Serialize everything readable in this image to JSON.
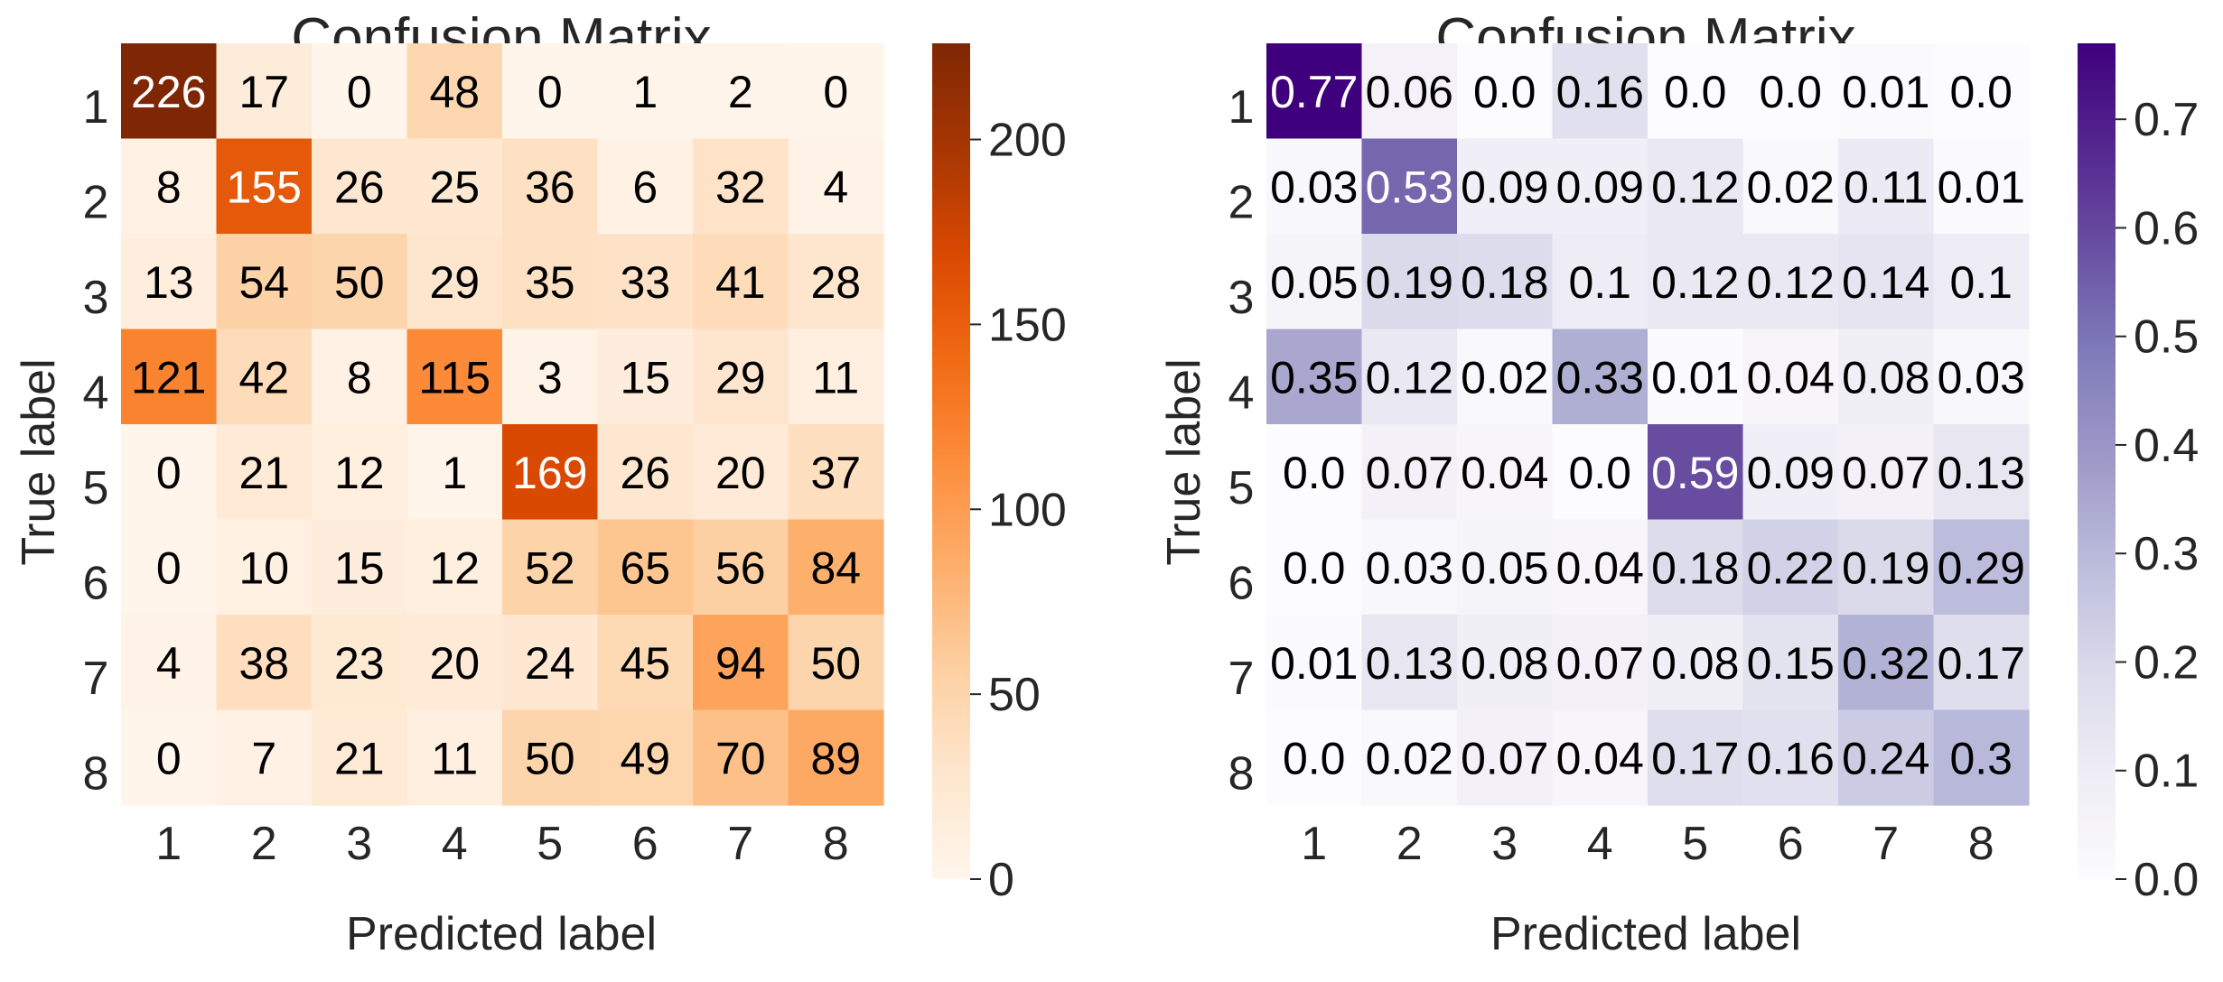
{
  "chart_data": [
    {
      "type": "heatmap",
      "title": "Confusion Matrix",
      "xlabel": "Predicted label",
      "ylabel": "True label",
      "x_tick_labels": [
        "1",
        "2",
        "3",
        "4",
        "5",
        "6",
        "7",
        "8"
      ],
      "y_tick_labels": [
        "1",
        "2",
        "3",
        "4",
        "5",
        "6",
        "7",
        "8"
      ],
      "colormap": "Oranges",
      "colors": {
        "low": "#fff5eb",
        "high": "#7f2704",
        "light_text": "#ffffff",
        "dark_text": "#000000"
      },
      "value_range": [
        0,
        226
      ],
      "colorbar_ticks": [
        0,
        50,
        100,
        150,
        200
      ],
      "colorbar_tick_labels": [
        "0",
        "50",
        "100",
        "150",
        "200"
      ],
      "matrix": [
        [
          226,
          17,
          0,
          48,
          0,
          1,
          2,
          0
        ],
        [
          8,
          155,
          26,
          25,
          36,
          6,
          32,
          4
        ],
        [
          13,
          54,
          50,
          29,
          35,
          33,
          41,
          28
        ],
        [
          121,
          42,
          8,
          115,
          3,
          15,
          29,
          11
        ],
        [
          0,
          21,
          12,
          1,
          169,
          26,
          20,
          37
        ],
        [
          0,
          10,
          15,
          12,
          52,
          65,
          56,
          84
        ],
        [
          4,
          38,
          23,
          20,
          24,
          45,
          94,
          50
        ],
        [
          0,
          7,
          21,
          11,
          50,
          49,
          70,
          89
        ]
      ],
      "cell_labels": [
        [
          "226",
          "17",
          "0",
          "48",
          "0",
          "1",
          "2",
          "0"
        ],
        [
          "8",
          "155",
          "26",
          "25",
          "36",
          "6",
          "32",
          "4"
        ],
        [
          "13",
          "54",
          "50",
          "29",
          "35",
          "33",
          "41",
          "28"
        ],
        [
          "121",
          "42",
          "8",
          "115",
          "3",
          "15",
          "29",
          "11"
        ],
        [
          "0",
          "21",
          "12",
          "1",
          "169",
          "26",
          "20",
          "37"
        ],
        [
          "0",
          "10",
          "15",
          "12",
          "52",
          "65",
          "56",
          "84"
        ],
        [
          "4",
          "38",
          "23",
          "20",
          "24",
          "45",
          "94",
          "50"
        ],
        [
          "0",
          "7",
          "21",
          "11",
          "50",
          "49",
          "70",
          "89"
        ]
      ]
    },
    {
      "type": "heatmap",
      "title": "Confusion Matrix",
      "xlabel": "Predicted label",
      "ylabel": "True label",
      "x_tick_labels": [
        "1",
        "2",
        "3",
        "4",
        "5",
        "6",
        "7",
        "8"
      ],
      "y_tick_labels": [
        "1",
        "2",
        "3",
        "4",
        "5",
        "6",
        "7",
        "8"
      ],
      "colormap": "Purples",
      "colors": {
        "low": "#fcfbfd",
        "high": "#3f007d",
        "light_text": "#ffffff",
        "dark_text": "#000000"
      },
      "value_range": [
        0,
        0.77
      ],
      "colorbar_ticks": [
        0.0,
        0.1,
        0.2,
        0.3,
        0.4,
        0.5,
        0.6,
        0.7
      ],
      "colorbar_tick_labels": [
        "0.0",
        "0.1",
        "0.2",
        "0.3",
        "0.4",
        "0.5",
        "0.6",
        "0.7"
      ],
      "matrix": [
        [
          0.77,
          0.06,
          0.0,
          0.16,
          0.0,
          0.0,
          0.01,
          0.0
        ],
        [
          0.03,
          0.53,
          0.09,
          0.09,
          0.12,
          0.02,
          0.11,
          0.01
        ],
        [
          0.05,
          0.19,
          0.18,
          0.1,
          0.12,
          0.12,
          0.14,
          0.1
        ],
        [
          0.35,
          0.12,
          0.02,
          0.33,
          0.01,
          0.04,
          0.08,
          0.03
        ],
        [
          0.0,
          0.07,
          0.04,
          0.0,
          0.59,
          0.09,
          0.07,
          0.13
        ],
        [
          0.0,
          0.03,
          0.05,
          0.04,
          0.18,
          0.22,
          0.19,
          0.29
        ],
        [
          0.01,
          0.13,
          0.08,
          0.07,
          0.08,
          0.15,
          0.32,
          0.17
        ],
        [
          0.0,
          0.02,
          0.07,
          0.04,
          0.17,
          0.16,
          0.24,
          0.3
        ]
      ],
      "cell_labels": [
        [
          "0.77",
          "0.06",
          "0.0",
          "0.16",
          "0.0",
          "0.0",
          "0.01",
          "0.0"
        ],
        [
          "0.03",
          "0.53",
          "0.09",
          "0.09",
          "0.12",
          "0.02",
          "0.11",
          "0.01"
        ],
        [
          "0.05",
          "0.19",
          "0.18",
          "0.1",
          "0.12",
          "0.12",
          "0.14",
          "0.1"
        ],
        [
          "0.35",
          "0.12",
          "0.02",
          "0.33",
          "0.01",
          "0.04",
          "0.08",
          "0.03"
        ],
        [
          "0.0",
          "0.07",
          "0.04",
          "0.0",
          "0.59",
          "0.09",
          "0.07",
          "0.13"
        ],
        [
          "0.0",
          "0.03",
          "0.05",
          "0.04",
          "0.18",
          "0.22",
          "0.19",
          "0.29"
        ],
        [
          "0.01",
          "0.13",
          "0.08",
          "0.07",
          "0.08",
          "0.15",
          "0.32",
          "0.17"
        ],
        [
          "0.0",
          "0.02",
          "0.07",
          "0.04",
          "0.17",
          "0.16",
          "0.24",
          "0.3"
        ]
      ]
    }
  ]
}
